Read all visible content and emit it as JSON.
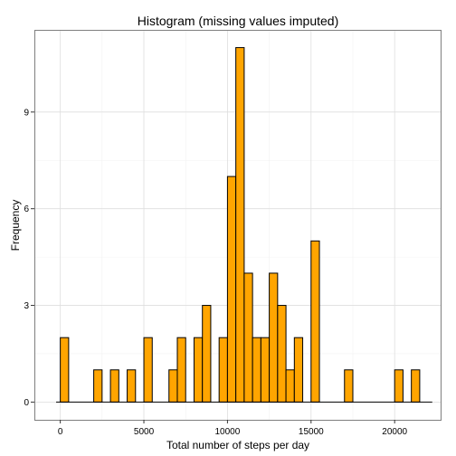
{
  "chart_data": {
    "type": "bar",
    "title": "Histogram (missing values imputed)",
    "xlabel": "Total number of steps per day",
    "ylabel": "Frequency",
    "bin_width": 500,
    "xlim": [
      -1550,
      22750
    ],
    "ylim": [
      -0.55,
      11.55
    ],
    "x_ticks": [
      0,
      5000,
      10000,
      15000,
      20000
    ],
    "x_tick_labels": [
      "0",
      "5000",
      "10000",
      "15000",
      "20000"
    ],
    "y_ticks": [
      0,
      3,
      6,
      9
    ],
    "y_tick_labels": [
      "0",
      "3",
      "6",
      "9"
    ],
    "grid": true,
    "legend": "none",
    "baseline": [
      -250,
      22250
    ],
    "bins": [
      {
        "start": 0,
        "end": 500,
        "count": 2
      },
      {
        "start": 2000,
        "end": 2500,
        "count": 1
      },
      {
        "start": 3000,
        "end": 3500,
        "count": 1
      },
      {
        "start": 4000,
        "end": 4500,
        "count": 1
      },
      {
        "start": 5000,
        "end": 5500,
        "count": 2
      },
      {
        "start": 6500,
        "end": 7000,
        "count": 1
      },
      {
        "start": 7000,
        "end": 7500,
        "count": 2
      },
      {
        "start": 8000,
        "end": 8500,
        "count": 2
      },
      {
        "start": 8500,
        "end": 9000,
        "count": 3
      },
      {
        "start": 9500,
        "end": 10000,
        "count": 2
      },
      {
        "start": 10000,
        "end": 10500,
        "count": 7
      },
      {
        "start": 10500,
        "end": 11000,
        "count": 11
      },
      {
        "start": 11000,
        "end": 11500,
        "count": 4
      },
      {
        "start": 11500,
        "end": 12000,
        "count": 2
      },
      {
        "start": 12000,
        "end": 12500,
        "count": 2
      },
      {
        "start": 12500,
        "end": 13000,
        "count": 4
      },
      {
        "start": 13000,
        "end": 13500,
        "count": 3
      },
      {
        "start": 13500,
        "end": 14000,
        "count": 1
      },
      {
        "start": 14000,
        "end": 14500,
        "count": 2
      },
      {
        "start": 15000,
        "end": 15500,
        "count": 5
      },
      {
        "start": 17000,
        "end": 17500,
        "count": 1
      },
      {
        "start": 20000,
        "end": 20500,
        "count": 1
      },
      {
        "start": 21000,
        "end": 21500,
        "count": 1
      }
    ],
    "colors": {
      "bar_fill": "#FFA500",
      "bar_stroke": "#000000",
      "grid_major": "#DEDEDE",
      "grid_minor": "#F2F2F2",
      "panel_border": "#7F7F7F"
    }
  }
}
